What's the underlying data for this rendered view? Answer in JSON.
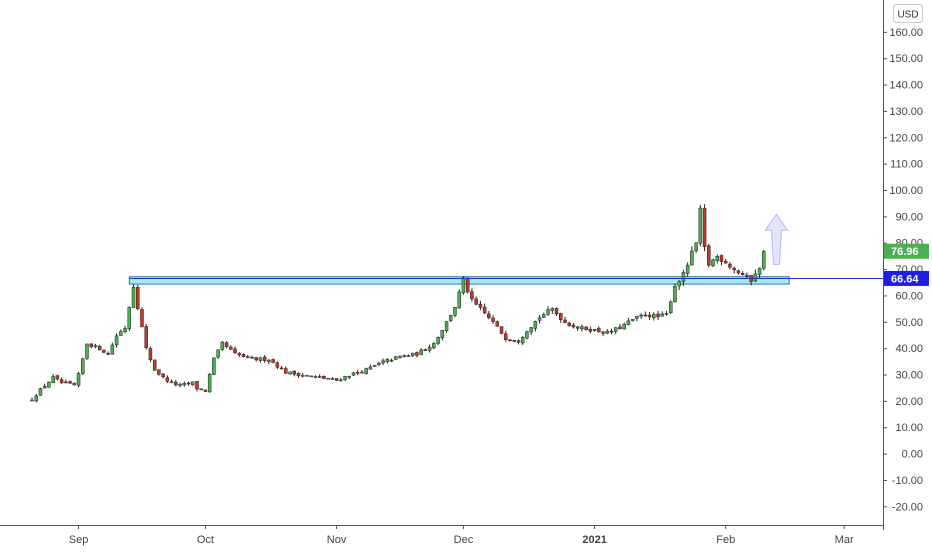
{
  "currency_button": "USD",
  "colors": {
    "up": "#4caf50",
    "down": "#c0392b",
    "wick": "#222222",
    "support_zone_fill": "#9be8ec",
    "support_zone_stroke": "#2a7fa8",
    "price_line": "#2a2ad6",
    "last_price_label": "#4caf50",
    "level_label": "#1e1ee0",
    "arrow_fill": "#e3e4fb",
    "arrow_stroke": "#b5b8f0",
    "axis_text": "#444444",
    "axis_line": "#555555"
  },
  "chart_data": {
    "type": "candlestick",
    "title": "",
    "ylim": [
      -25,
      170
    ],
    "y_ticks": [
      "-20.00",
      "-10.00",
      "0.00",
      "10.00",
      "20.00",
      "30.00",
      "40.00",
      "50.00",
      "60.00",
      "70.00",
      "80.00",
      "90.00",
      "100.00",
      "110.00",
      "120.00",
      "130.00",
      "140.00",
      "150.00",
      "160.00"
    ],
    "x_ticks": [
      {
        "label": "Sep",
        "date": "2020-09-01"
      },
      {
        "label": "Oct",
        "date": "2020-10-01"
      },
      {
        "label": "Nov",
        "date": "2020-11-01"
      },
      {
        "label": "Dec",
        "date": "2020-12-01"
      },
      {
        "label": "2021",
        "date": "2021-01-01",
        "bold": true
      },
      {
        "label": "Feb",
        "date": "2021-02-01"
      },
      {
        "label": "Mar",
        "date": "2021-03-01"
      }
    ],
    "price_path": [
      [
        "2020-08-21",
        21
      ],
      [
        "2020-08-24",
        26
      ],
      [
        "2020-08-26",
        29
      ],
      [
        "2020-08-28",
        27
      ],
      [
        "2020-08-31",
        26
      ],
      [
        "2020-09-01",
        30
      ],
      [
        "2020-09-03",
        42
      ],
      [
        "2020-09-06",
        40
      ],
      [
        "2020-09-08",
        38
      ],
      [
        "2020-09-10",
        45
      ],
      [
        "2020-09-12",
        48
      ],
      [
        "2020-09-14",
        64
      ],
      [
        "2020-09-15",
        56
      ],
      [
        "2020-09-17",
        40
      ],
      [
        "2020-09-19",
        32
      ],
      [
        "2020-09-21",
        29
      ],
      [
        "2020-09-23",
        27
      ],
      [
        "2020-09-25",
        26
      ],
      [
        "2020-09-28",
        27
      ],
      [
        "2020-09-29",
        25
      ],
      [
        "2020-10-01",
        24
      ],
      [
        "2020-10-03",
        36
      ],
      [
        "2020-10-05",
        42
      ],
      [
        "2020-10-08",
        38
      ],
      [
        "2020-10-12",
        36
      ],
      [
        "2020-10-16",
        36
      ],
      [
        "2020-10-20",
        31
      ],
      [
        "2020-10-24",
        30
      ],
      [
        "2020-10-28",
        29
      ],
      [
        "2020-11-01",
        28
      ],
      [
        "2020-11-04",
        30
      ],
      [
        "2020-11-08",
        32
      ],
      [
        "2020-11-12",
        35
      ],
      [
        "2020-11-16",
        37
      ],
      [
        "2020-11-20",
        38
      ],
      [
        "2020-11-24",
        42
      ],
      [
        "2020-11-27",
        50
      ],
      [
        "2020-11-29",
        56
      ],
      [
        "2020-12-01",
        66
      ],
      [
        "2020-12-03",
        58
      ],
      [
        "2020-12-05",
        55
      ],
      [
        "2020-12-08",
        50
      ],
      [
        "2020-12-11",
        44
      ],
      [
        "2020-12-14",
        43
      ],
      [
        "2020-12-16",
        47
      ],
      [
        "2020-12-19",
        52
      ],
      [
        "2020-12-22",
        55
      ],
      [
        "2020-12-25",
        50
      ],
      [
        "2020-12-28",
        48
      ],
      [
        "2021-01-01",
        47
      ],
      [
        "2021-01-04",
        46
      ],
      [
        "2021-01-07",
        48
      ],
      [
        "2021-01-10",
        51
      ],
      [
        "2021-01-13",
        53
      ],
      [
        "2021-01-16",
        52
      ],
      [
        "2021-01-18",
        53
      ],
      [
        "2021-01-20",
        64
      ],
      [
        "2021-01-22",
        68
      ],
      [
        "2021-01-25",
        80
      ],
      [
        "2021-01-26",
        92
      ],
      [
        "2021-01-27",
        78
      ],
      [
        "2021-01-28",
        72
      ],
      [
        "2021-01-30",
        75
      ],
      [
        "2021-02-01",
        73
      ],
      [
        "2021-02-03",
        70
      ],
      [
        "2021-02-05",
        68
      ],
      [
        "2021-02-07",
        66
      ],
      [
        "2021-02-08",
        69
      ],
      [
        "2021-02-09",
        70
      ],
      [
        "2021-02-10",
        77
      ]
    ],
    "last_price": 76.96,
    "last_price_label": "76.96",
    "support_level": 66.64,
    "support_level_label": "66.64",
    "support_zone": {
      "start": "2020-09-13",
      "end": "2021-02-16",
      "low": 64.5,
      "high": 67.3
    },
    "projection_arrow": {
      "date": "2021-02-13",
      "from": 72,
      "to": 91
    }
  }
}
